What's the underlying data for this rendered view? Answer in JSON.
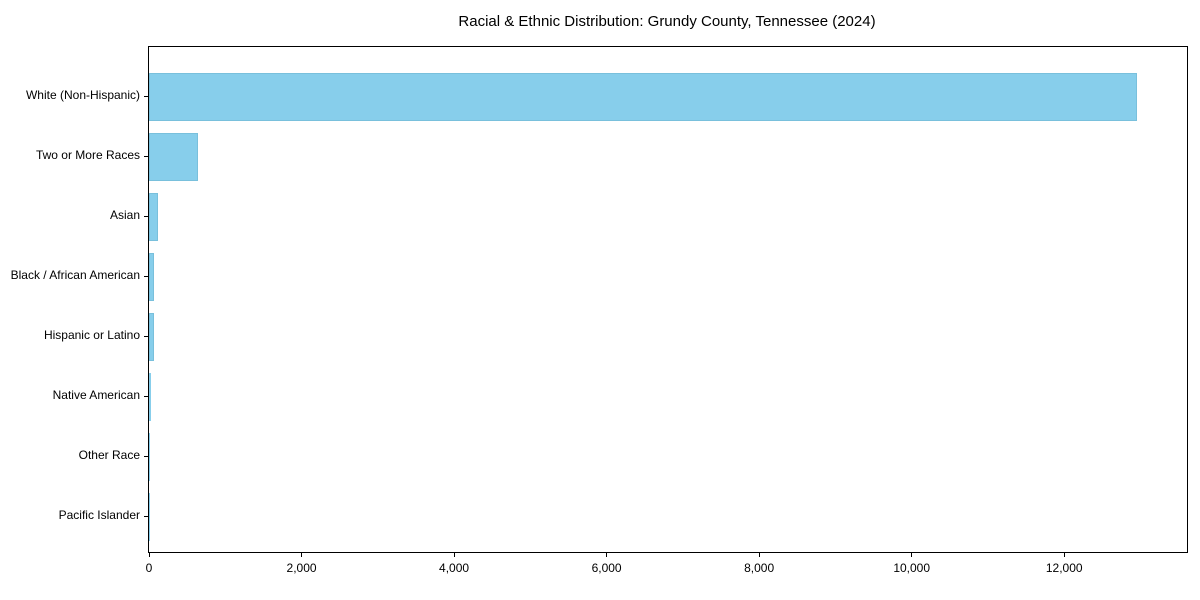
{
  "figure": {
    "background_color": "#ffffff",
    "spine_color": "#000000",
    "text_color": "#000000"
  },
  "chart_data": {
    "type": "bar",
    "orientation": "horizontal",
    "title": "Racial & Ethnic Distribution: Grundy County, Tennessee (2024)",
    "xlabel": "",
    "ylabel": "",
    "categories": [
      "White (Non-Hispanic)",
      "Two or More Races",
      "Asian",
      "Black / African American",
      "Hispanic or Latino",
      "Native American",
      "Other Race",
      "Pacific Islander"
    ],
    "values": [
      12950,
      640,
      120,
      70,
      65,
      20,
      5,
      2
    ],
    "bar_color": "#87ceeb",
    "xlim": [
      0,
      13610
    ],
    "xticks": [
      0,
      2000,
      4000,
      6000,
      8000,
      10000,
      12000
    ],
    "xtick_labels": [
      "0",
      "2,000",
      "4,000",
      "6,000",
      "8,000",
      "10,000",
      "12,000"
    ],
    "grid": false,
    "legend": false,
    "sort_order": "descending"
  }
}
